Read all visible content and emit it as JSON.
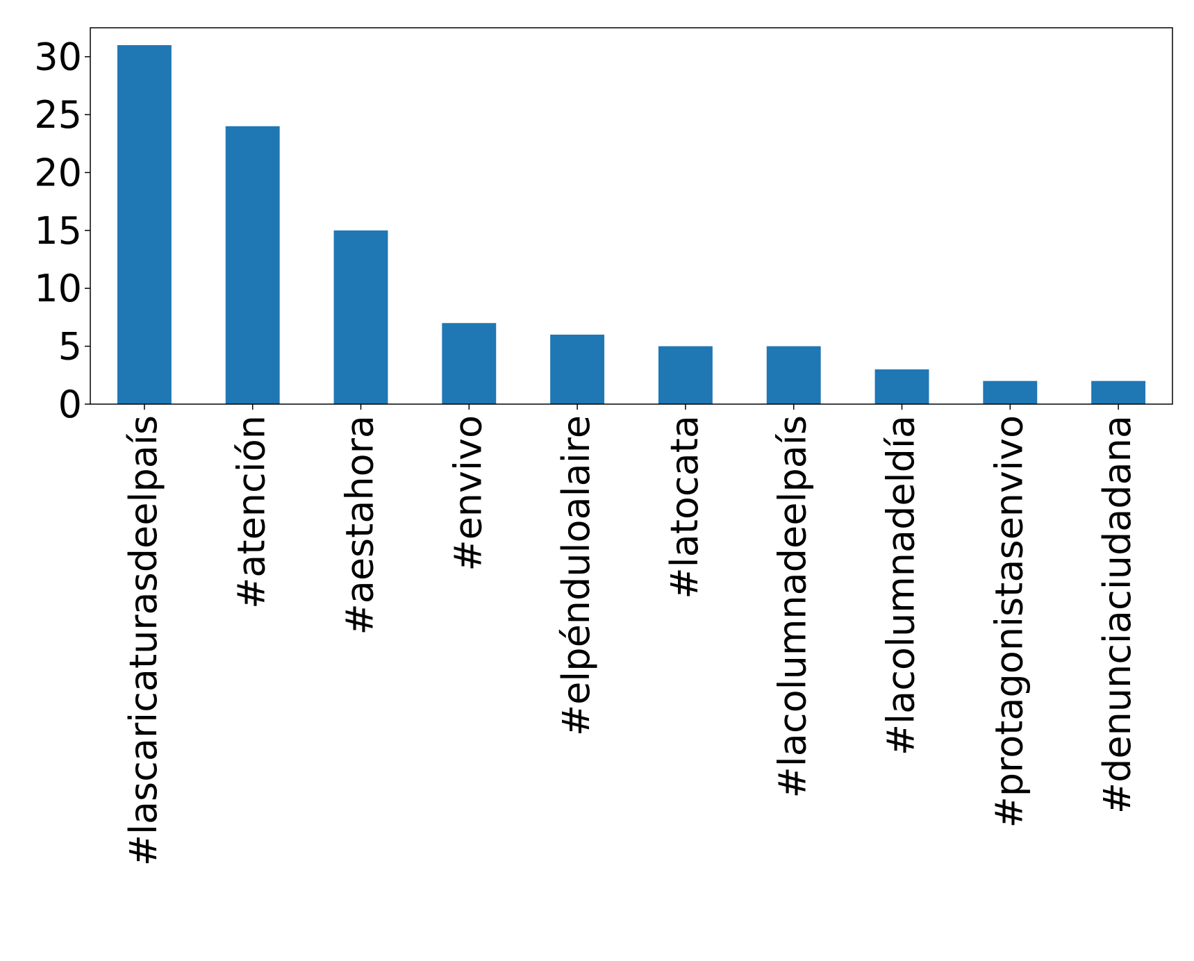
{
  "chart_data": {
    "type": "bar",
    "title": "",
    "xlabel": "",
    "ylabel": "",
    "categories": [
      "#lascaricaturasdeelpaís",
      "#atención",
      "#aestahora",
      "#envivo",
      "#elpénduloalaire",
      "#latocata",
      "#lacolumnadeelpaís",
      "#lacolumnadeldía",
      "#protagonistasenvivo",
      "#denunciaciudadana"
    ],
    "values": [
      31,
      24,
      15,
      7,
      6,
      5,
      5,
      3,
      2,
      2
    ],
    "ylim": [
      0,
      32.5
    ],
    "yticks": [
      0,
      5,
      10,
      15,
      20,
      25,
      30
    ],
    "grid": false,
    "legend": "none",
    "colors": {
      "bar": "#1f77b4",
      "axis": "#000000",
      "background": "#ffffff"
    }
  }
}
